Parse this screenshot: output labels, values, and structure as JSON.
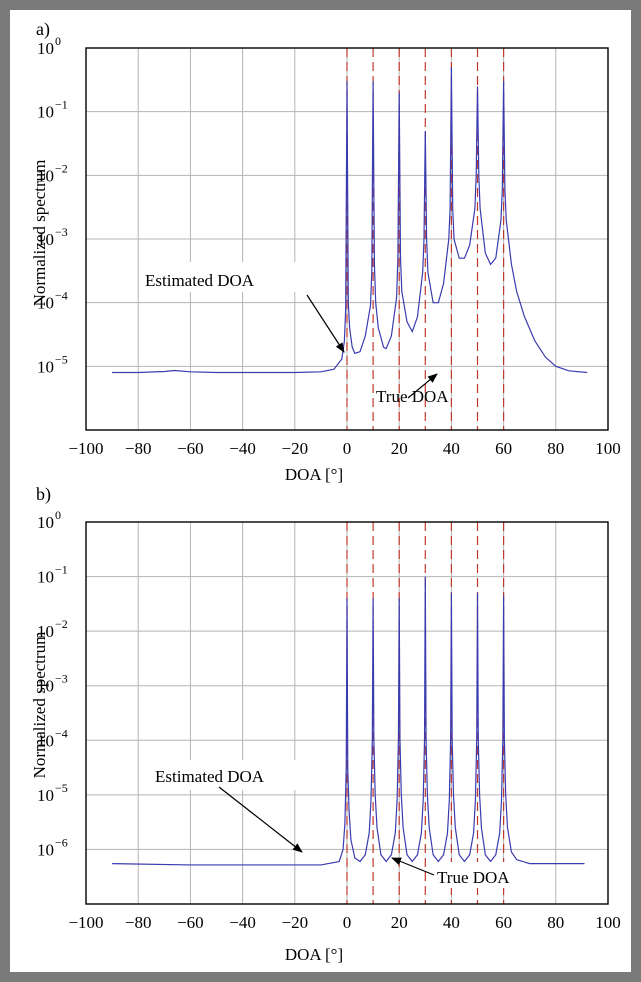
{
  "colors": {
    "spectrum": "#3b3bb0",
    "true_doa": "#c0392b",
    "grid": "#b5b5b5",
    "border": "#7a7a7a"
  },
  "chart_data": [
    {
      "panel_label": "a)",
      "type": "line",
      "xlabel": "DOA [°]",
      "ylabel": "Normalized spectrum",
      "xlim": [
        -100,
        100
      ],
      "ylim_log10": [
        -6,
        0
      ],
      "yscale": "log",
      "x_ticks": [
        "−100",
        "−80",
        "−60",
        "−40",
        "−20",
        "0",
        "20",
        "40",
        "60",
        "80",
        "100"
      ],
      "y_ticks": [
        {
          "base": "10",
          "exp": "0"
        },
        {
          "base": "10",
          "exp": "−1"
        },
        {
          "base": "10",
          "exp": "−2"
        },
        {
          "base": "10",
          "exp": "−3"
        },
        {
          "base": "10",
          "exp": "−4"
        },
        {
          "base": "10",
          "exp": "−5"
        }
      ],
      "grid": true,
      "true_doa": [
        0,
        10,
        20,
        30,
        40,
        50,
        60
      ],
      "series": [
        {
          "x": [
            -90,
            -80,
            -70,
            -66,
            -60,
            -50,
            -40,
            -30,
            -20,
            -10,
            -5,
            -2,
            -1,
            -0.5,
            0,
            0.5,
            1,
            2,
            3,
            5,
            7,
            9,
            9.5,
            10,
            10.5,
            11,
            12,
            14,
            15,
            17,
            19,
            19.5,
            20,
            20.5,
            21,
            23,
            25,
            27,
            29,
            29.5,
            30,
            30.5,
            31,
            33,
            35,
            37,
            39,
            39.5,
            40,
            40.5,
            41,
            43,
            45,
            47,
            49,
            49.5,
            50,
            50.5,
            51,
            53,
            55,
            57,
            59,
            59.5,
            60,
            60.5,
            61,
            63,
            65,
            68,
            72,
            76,
            80,
            85,
            92
          ],
          "y": [
            8e-06,
            8e-06,
            8.3e-06,
            8.6e-06,
            8.2e-06,
            8e-06,
            8e-06,
            8e-06,
            8e-06,
            8.2e-06,
            9e-06,
            1.3e-05,
            2.5e-05,
            8e-05,
            0.3,
            0.0001,
            4e-05,
            2e-05,
            1.6e-05,
            1.7e-05,
            3e-05,
            9e-05,
            0.0003,
            0.3,
            0.0004,
            0.0001,
            4e-05,
            2e-05,
            1.9e-05,
            3e-05,
            0.00012,
            0.0005,
            0.2,
            0.0005,
            0.00015,
            5e-05,
            3.5e-05,
            6e-05,
            0.0003,
            0.001,
            0.05,
            0.001,
            0.0003,
            0.0001,
            0.0001,
            0.0002,
            0.001,
            0.003,
            0.5,
            0.003,
            0.001,
            0.0005,
            0.0005,
            0.0008,
            0.003,
            0.01,
            0.25,
            0.01,
            0.003,
            0.0006,
            0.0004,
            0.0005,
            0.002,
            0.006,
            0.3,
            0.006,
            0.002,
            0.0004,
            0.00015,
            6e-05,
            2.5e-05,
            1.4e-05,
            1e-05,
            8.5e-06,
            8e-06
          ]
        }
      ],
      "annotations": [
        {
          "text": "Estimated DOA",
          "x": -4,
          "y": 1.1e-05
        },
        {
          "text": "True DOA",
          "x": 30,
          "y": 7e-06
        }
      ]
    },
    {
      "panel_label": "b)",
      "type": "line",
      "xlabel": "DOA [°]",
      "ylabel": "Normalized spectrum",
      "xlim": [
        -100,
        100
      ],
      "ylim_log10": [
        -7,
        0
      ],
      "yscale": "log",
      "x_ticks": [
        "−100",
        "−80",
        "−60",
        "−40",
        "−20",
        "0",
        "20",
        "40",
        "60",
        "80",
        "100"
      ],
      "y_ticks": [
        {
          "base": "10",
          "exp": "0"
        },
        {
          "base": "10",
          "exp": "−1"
        },
        {
          "base": "10",
          "exp": "−2"
        },
        {
          "base": "10",
          "exp": "−3"
        },
        {
          "base": "10",
          "exp": "−4"
        },
        {
          "base": "10",
          "exp": "−5"
        },
        {
          "base": "10",
          "exp": "−6"
        }
      ],
      "grid": true,
      "true_doa": [
        0,
        10,
        20,
        30,
        40,
        50,
        60
      ],
      "series": [
        {
          "x": [
            -90,
            -60,
            -30,
            -10,
            -3,
            -1.5,
            -0.8,
            -0.3,
            0,
            0.3,
            0.8,
            1.5,
            3,
            5,
            7,
            8.5,
            9.2,
            9.7,
            10,
            10.3,
            10.8,
            11.5,
            13,
            15,
            17,
            18.5,
            19.2,
            19.7,
            20,
            20.3,
            20.8,
            21.5,
            23,
            25,
            27,
            28.5,
            29.2,
            29.7,
            30,
            30.3,
            30.8,
            31.5,
            33,
            35,
            37,
            38.5,
            39.2,
            39.7,
            40,
            40.3,
            40.8,
            41.5,
            43,
            45,
            47,
            48.5,
            49.2,
            49.7,
            50,
            50.3,
            50.8,
            51.5,
            53,
            55,
            57,
            58.5,
            59.2,
            59.7,
            60,
            60.3,
            60.8,
            61.5,
            63,
            65,
            70,
            80,
            91
          ],
          "y": [
            5.5e-07,
            5.2e-07,
            5.2e-07,
            5.2e-07,
            6e-07,
            1e-06,
            3e-06,
            3e-05,
            0.04,
            3e-05,
            5e-06,
            1.5e-06,
            7e-07,
            6e-07,
            8e-07,
            2e-06,
            8e-06,
            0.0001,
            0.04,
            0.0001,
            1e-05,
            2.5e-06,
            8e-07,
            6e-07,
            8e-07,
            2e-06,
            8e-06,
            0.0001,
            0.04,
            0.0001,
            1e-05,
            2.5e-06,
            8e-07,
            6e-07,
            8e-07,
            2e-06,
            8e-06,
            0.0001,
            0.1,
            0.0001,
            1e-05,
            2.5e-06,
            8e-07,
            6e-07,
            8e-07,
            2e-06,
            8e-06,
            0.0001,
            0.05,
            0.0001,
            1e-05,
            2.5e-06,
            8e-07,
            6e-07,
            8e-07,
            2e-06,
            8e-06,
            0.0001,
            0.05,
            0.0001,
            1e-05,
            2.5e-06,
            8e-07,
            6e-07,
            8e-07,
            2e-06,
            8e-06,
            0.0001,
            0.045,
            0.0001,
            1e-05,
            2.5e-06,
            9e-07,
            6.5e-07,
            5.5e-07,
            5.5e-07,
            5.5e-07
          ]
        }
      ],
      "annotations": [
        {
          "text": "Estimated DOA",
          "x": -22,
          "y": 5.2e-07
        },
        {
          "text": "True DOA",
          "x": 9,
          "y": 6e-07
        }
      ]
    }
  ]
}
